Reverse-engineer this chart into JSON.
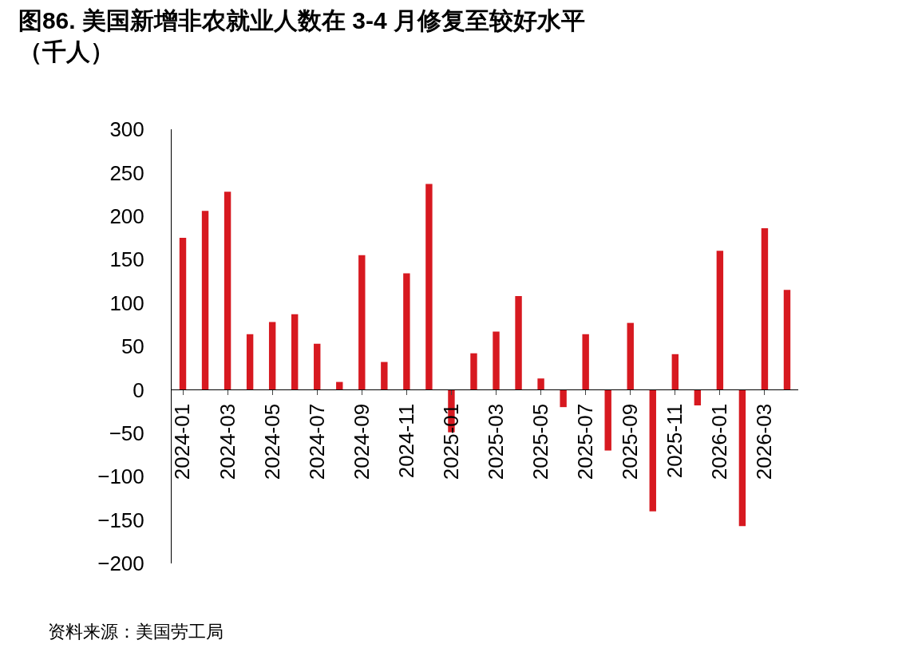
{
  "chart_data": {
    "type": "bar",
    "title": "图86. 美国新增非农就业人数在 3-4 月修复至较好水平（千人）",
    "categories": [
      "2024-01",
      null,
      "2024-03",
      null,
      "2024-05",
      null,
      "2024-07",
      null,
      "2024-09",
      null,
      "2024-11",
      null,
      "2025-01",
      null,
      "2025-03",
      null,
      "2025-05",
      null,
      "2025-07",
      null,
      "2025-09",
      null,
      "2025-11",
      null,
      "2026-01",
      null,
      "2026-03",
      null
    ],
    "series": [
      {
        "color": "#d71920",
        "values": [
          175,
          206,
          228,
          64,
          78,
          87,
          53,
          9,
          155,
          32,
          134,
          237,
          -49,
          42,
          67,
          108,
          13,
          -20,
          64,
          -70,
          77,
          -140,
          41,
          -18,
          160,
          -157,
          186,
          115
        ]
      }
    ],
    "ylim": [
      -200,
      300
    ],
    "yticks": [
      -200,
      -150,
      -100,
      -50,
      0,
      50,
      100,
      150,
      200,
      250,
      300
    ],
    "grid": false,
    "annotations": [
      "资料来源：美国劳工局"
    ]
  }
}
